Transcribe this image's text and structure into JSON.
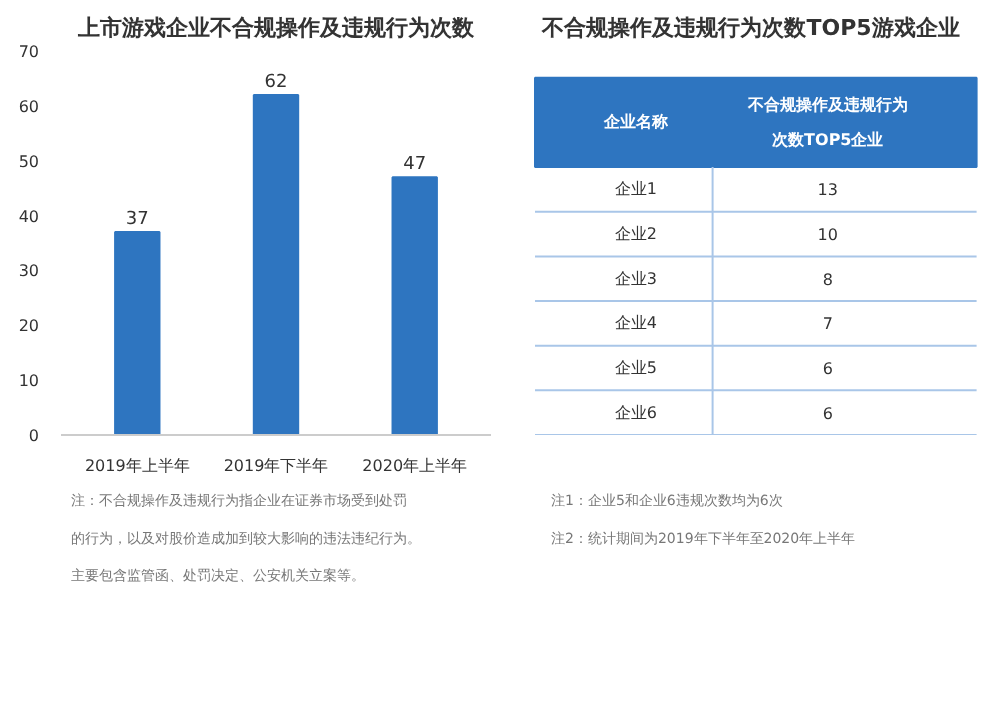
{
  "chart_data": [
    {
      "type": "bar",
      "title": "上市游戏企业不合规操作及违规行为次数",
      "categories": [
        "2019年上半年",
        "2019年下半年",
        "2020年上半年"
      ],
      "values": [
        37,
        62,
        47
      ],
      "color": "#2e75c0",
      "ylim": [
        0,
        70
      ],
      "yticks": [
        0,
        10,
        20,
        30,
        40,
        50,
        60,
        70
      ],
      "data_labels": true,
      "grid": false,
      "annotations": [
        "注：不合规操作及违规行为指企业在证券市场受到处罚的行为，以及对股价造成加到较大影响的违法违纪行为。主要包含监管函、处罚决定、公安机关立案等。"
      ]
    },
    {
      "type": "other",
      "title": "不合规操作及违规行为次数TOP5游戏企业",
      "xlabel": "企业名称",
      "ylabel": "不合规操作及违规行为次数TOP5企业",
      "data_labels": true,
      "categories": [
        "企业1",
        "企业2",
        "企业3",
        "企业4",
        "企业5",
        "企业6"
      ],
      "values": [
        13,
        10,
        8,
        7,
        6,
        6
      ],
      "color": "#2e75c0",
      "annotations": [
        "注1：企业5和企业6违规次数均为6次",
        "注2：统计期间为2019年下半年至2020年上半年"
      ]
    }
  ]
}
